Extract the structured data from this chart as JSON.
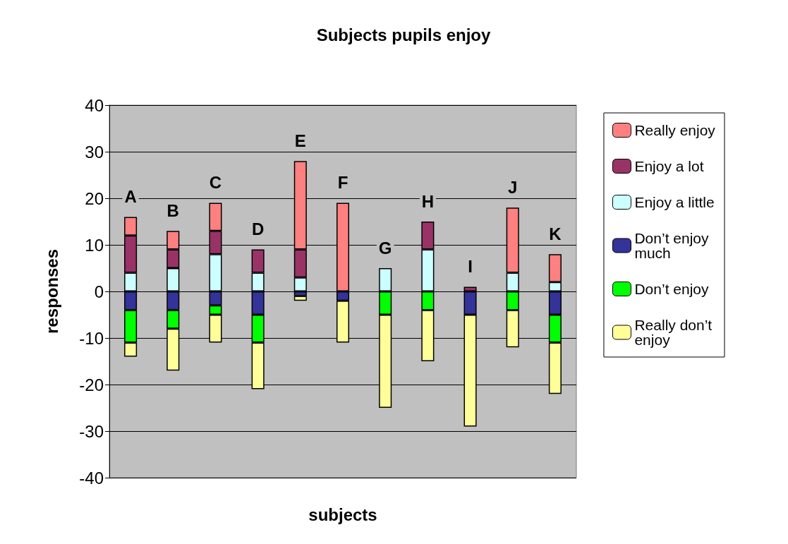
{
  "chart_data": {
    "type": "bar",
    "stacked": true,
    "title": "Subjects pupils enjoy",
    "xlabel": "subjects",
    "ylabel": "responses",
    "categories": [
      "A",
      "B",
      "C",
      "D",
      "E",
      "F",
      "G",
      "H",
      "I",
      "J",
      "K"
    ],
    "ylim": [
      -40,
      40
    ],
    "yticks": [
      -40,
      -30,
      -20,
      -10,
      0,
      10,
      20,
      30,
      40
    ],
    "grid": "y",
    "legend": "right",
    "series": [
      {
        "name": "Enjoy a little",
        "color": "#ccffff",
        "values": [
          4,
          5,
          8,
          4,
          3,
          null,
          5,
          9,
          null,
          4,
          2
        ]
      },
      {
        "name": "Enjoy a lot",
        "color": "#993366",
        "values": [
          8,
          4,
          5,
          5,
          6,
          null,
          null,
          6,
          1,
          null,
          null
        ]
      },
      {
        "name": "Really enjoy",
        "color": "#ff8080",
        "values": [
          4,
          4,
          6,
          null,
          19,
          19,
          null,
          null,
          null,
          14,
          6
        ]
      },
      {
        "name": "Don’t enjoy much",
        "color": "#333399",
        "values": [
          -4,
          -4,
          -3,
          -5,
          -1,
          -2,
          null,
          null,
          -5,
          null,
          -5
        ]
      },
      {
        "name": "Don’t enjoy",
        "color": "#00ff00",
        "values": [
          -7,
          -4,
          -2,
          -6,
          null,
          null,
          -5,
          -4,
          null,
          -4,
          -6
        ]
      },
      {
        "name": "Really don’t enjoy",
        "color": "#ffff99",
        "values": [
          -3,
          -9,
          -6,
          -10,
          -1,
          -9,
          -20,
          -11,
          -24,
          -8,
          -11
        ]
      }
    ]
  }
}
